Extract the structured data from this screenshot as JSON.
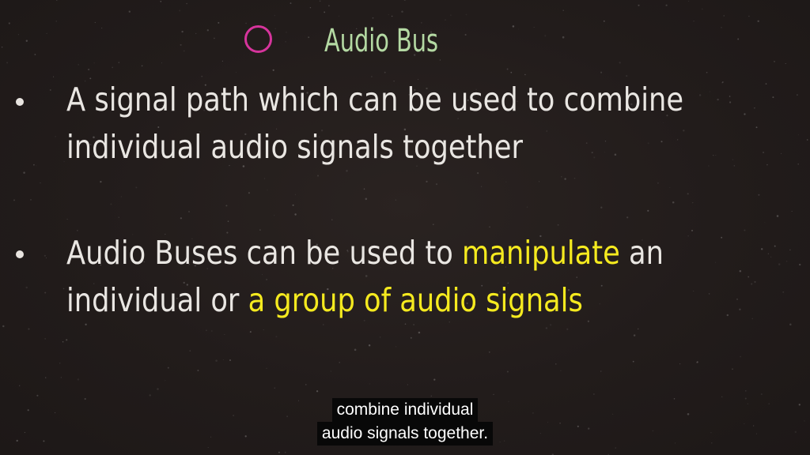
{
  "slide": {
    "title": "Audio Bus",
    "bullets": [
      {
        "line1": "A signal path which can be used to combine",
        "line2": "individual audio signals together"
      },
      {
        "line1_a": "Audio Buses can be used to ",
        "line1_hl": "manipulate",
        "line1_b": " an",
        "line2_a": "individual or ",
        "line2_hl": "a group of audio signals"
      }
    ]
  },
  "caption": {
    "line1": "combine individual",
    "line2": "audio signals together."
  },
  "colors": {
    "background": "#221c1b",
    "title": "#b4d9a3",
    "circle": "#d6349c",
    "text": "#e9e6e2",
    "highlight": "#f5ea1f"
  }
}
